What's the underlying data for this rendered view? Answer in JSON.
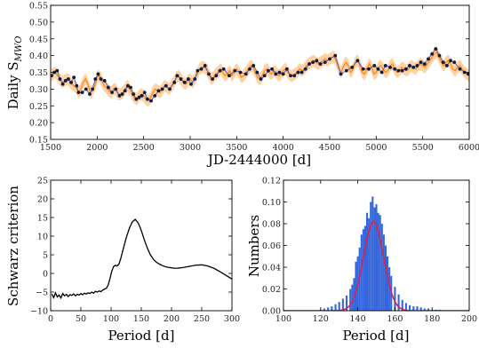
{
  "colors": {
    "obs_points": "#0d1b3d",
    "obs_line": "#3b5bd9",
    "model_line": "#ff8c1a",
    "model_band": "#ffbf80",
    "histogram": "#3366dd",
    "gauss_fit": "#dd2244",
    "schwarz_line": "#000000"
  },
  "chart_data": [
    {
      "type": "line",
      "ylabel": "Daily S",
      "ylabel_sub": "MWO",
      "xlabel": "JD-2444000 [d]",
      "xlim": [
        1500,
        6000
      ],
      "ylim": [
        0.15,
        0.55
      ],
      "xticks": [
        1500,
        2000,
        2500,
        3000,
        3500,
        4000,
        4500,
        5000,
        5500,
        6000
      ],
      "yticks": [
        0.15,
        0.2,
        0.25,
        0.3,
        0.35,
        0.4,
        0.45,
        0.5,
        0.55
      ],
      "ytick_labels": [
        "0.15",
        "0.20",
        "0.25",
        "0.30",
        "0.35",
        "0.40",
        "0.45",
        "0.50",
        "0.55"
      ],
      "series": [
        {
          "kind": "observations",
          "x": [
            1510,
            1540,
            1570,
            1600,
            1630,
            1660,
            1690,
            1720,
            1750,
            1780,
            1800,
            1840,
            1880,
            1920,
            1950,
            1980,
            2010,
            2040,
            2080,
            2120,
            2160,
            2200,
            2240,
            2270,
            2300,
            2330,
            2360,
            2390,
            2420,
            2450,
            2480,
            2510,
            2540,
            2580,
            2620,
            2660,
            2700,
            2740,
            2780,
            2830,
            2860,
            2900,
            2940,
            2980,
            3010,
            3050,
            3080,
            3120,
            3160,
            3200,
            3240,
            3280,
            3320,
            3360,
            3420,
            3480,
            3540,
            3600,
            3640,
            3680,
            3720,
            3760,
            3800,
            3840,
            3880,
            3920,
            3960,
            4000,
            4040,
            4080,
            4120,
            4160,
            4200,
            4240,
            4280,
            4320,
            4360,
            4400,
            4450,
            4500,
            4560,
            4620,
            4680,
            4740,
            4800,
            4860,
            4920,
            4980,
            5020,
            5060,
            5100,
            5150,
            5200,
            5240,
            5280,
            5320,
            5360,
            5400,
            5440,
            5480,
            5520,
            5560,
            5600,
            5640,
            5680,
            5720,
            5760,
            5800,
            5840,
            5900,
            5950,
            5990
          ],
          "y": [
            0.34,
            0.35,
            0.355,
            0.33,
            0.315,
            0.325,
            0.33,
            0.32,
            0.335,
            0.31,
            0.29,
            0.29,
            0.3,
            0.285,
            0.3,
            0.33,
            0.345,
            0.33,
            0.325,
            0.305,
            0.29,
            0.3,
            0.28,
            0.285,
            0.295,
            0.31,
            0.305,
            0.285,
            0.27,
            0.275,
            0.28,
            0.29,
            0.27,
            0.265,
            0.28,
            0.295,
            0.3,
            0.31,
            0.3,
            0.32,
            0.34,
            0.33,
            0.32,
            0.33,
            0.315,
            0.33,
            0.355,
            0.36,
            0.37,
            0.345,
            0.33,
            0.34,
            0.355,
            0.36,
            0.34,
            0.355,
            0.35,
            0.345,
            0.36,
            0.37,
            0.35,
            0.33,
            0.34,
            0.355,
            0.36,
            0.345,
            0.35,
            0.345,
            0.36,
            0.34,
            0.34,
            0.35,
            0.35,
            0.36,
            0.375,
            0.38,
            0.385,
            0.375,
            0.38,
            0.39,
            0.4,
            0.345,
            0.355,
            0.365,
            0.385,
            0.36,
            0.36,
            0.37,
            0.36,
            0.35,
            0.37,
            0.365,
            0.36,
            0.355,
            0.355,
            0.36,
            0.37,
            0.365,
            0.37,
            0.38,
            0.375,
            0.39,
            0.405,
            0.42,
            0.4,
            0.38,
            0.37,
            0.385,
            0.38,
            0.36,
            0.35,
            0.345
          ]
        },
        {
          "kind": "model",
          "x": [
            1500,
            1525,
            1550,
            1575,
            1600,
            1625,
            1650,
            1675,
            1700,
            1725,
            1750,
            1775,
            1800,
            1825,
            1850,
            1875,
            1900,
            1925,
            1950,
            1975,
            2000,
            2025,
            2050,
            2075,
            2100,
            2125,
            2150,
            2175,
            2200,
            2225,
            2250,
            2275,
            2300,
            2325,
            2350,
            2375,
            2400,
            2425,
            2450,
            2475,
            2500,
            2525,
            2550,
            2575,
            2600,
            2625,
            2650,
            2675,
            2700,
            2725,
            2750,
            2775,
            2800,
            2825,
            2850,
            2875,
            2900,
            2925,
            2950,
            2975,
            3000,
            3025,
            3050,
            3075,
            3100,
            3125,
            3150,
            3175,
            3200,
            3225,
            3250,
            3275,
            3300,
            3325,
            3350,
            3375,
            3400,
            3425,
            3450,
            3475,
            3500,
            3525,
            3550,
            3575,
            3600,
            3625,
            3650,
            3675,
            3700,
            3725,
            3750,
            3775,
            3800,
            3825,
            3850,
            3875,
            3900,
            3925,
            3950,
            3975,
            4000,
            4025,
            4050,
            4075,
            4100,
            4125,
            4150,
            4175,
            4200,
            4225,
            4250,
            4275,
            4300,
            4325,
            4350,
            4375,
            4400,
            4425,
            4450,
            4475,
            4500,
            4525,
            4550,
            4575,
            4600,
            4625,
            4650,
            4675,
            4700,
            4725,
            4750,
            4775,
            4800,
            4825,
            4850,
            4875,
            4900,
            4925,
            4950,
            4975,
            5000,
            5025,
            5050,
            5075,
            5100,
            5125,
            5150,
            5175,
            5200,
            5225,
            5250,
            5275,
            5300,
            5325,
            5350,
            5375,
            5400,
            5425,
            5450,
            5475,
            5500,
            5525,
            5550,
            5575,
            5600,
            5625,
            5650,
            5675,
            5700,
            5725,
            5750,
            5775,
            5800,
            5825,
            5850,
            5875,
            5900,
            5925,
            5950,
            5975,
            6000
          ],
          "y": [
            0.34,
            0.345,
            0.35,
            0.34,
            0.33,
            0.32,
            0.325,
            0.33,
            0.325,
            0.315,
            0.31,
            0.305,
            0.29,
            0.3,
            0.32,
            0.33,
            0.315,
            0.29,
            0.295,
            0.31,
            0.335,
            0.34,
            0.325,
            0.31,
            0.305,
            0.295,
            0.29,
            0.3,
            0.3,
            0.285,
            0.285,
            0.29,
            0.3,
            0.31,
            0.3,
            0.285,
            0.275,
            0.27,
            0.28,
            0.285,
            0.28,
            0.27,
            0.265,
            0.275,
            0.29,
            0.3,
            0.295,
            0.29,
            0.3,
            0.31,
            0.305,
            0.3,
            0.31,
            0.32,
            0.335,
            0.34,
            0.33,
            0.32,
            0.315,
            0.325,
            0.33,
            0.32,
            0.33,
            0.345,
            0.36,
            0.365,
            0.365,
            0.36,
            0.345,
            0.33,
            0.335,
            0.345,
            0.35,
            0.36,
            0.35,
            0.34,
            0.345,
            0.355,
            0.34,
            0.35,
            0.36,
            0.35,
            0.335,
            0.34,
            0.35,
            0.36,
            0.37,
            0.365,
            0.35,
            0.335,
            0.33,
            0.34,
            0.355,
            0.36,
            0.35,
            0.345,
            0.355,
            0.35,
            0.34,
            0.345,
            0.355,
            0.36,
            0.35,
            0.34,
            0.34,
            0.345,
            0.35,
            0.36,
            0.355,
            0.36,
            0.37,
            0.375,
            0.38,
            0.385,
            0.38,
            0.375,
            0.38,
            0.385,
            0.39,
            0.385,
            0.39,
            0.395,
            0.395,
            0.38,
            0.36,
            0.35,
            0.37,
            0.38,
            0.37,
            0.35,
            0.36,
            0.38,
            0.385,
            0.37,
            0.35,
            0.345,
            0.36,
            0.375,
            0.365,
            0.345,
            0.35,
            0.365,
            0.37,
            0.36,
            0.35,
            0.355,
            0.37,
            0.375,
            0.36,
            0.35,
            0.355,
            0.365,
            0.36,
            0.355,
            0.36,
            0.37,
            0.365,
            0.36,
            0.37,
            0.375,
            0.37,
            0.365,
            0.375,
            0.385,
            0.395,
            0.405,
            0.41,
            0.395,
            0.38,
            0.37,
            0.38,
            0.385,
            0.375,
            0.36,
            0.355,
            0.365,
            0.37,
            0.36,
            0.35,
            0.345,
            0.34
          ]
        }
      ]
    },
    {
      "type": "line",
      "xlabel": "Period [d]",
      "ylabel": "Schwarz criterion",
      "xlim": [
        0,
        300
      ],
      "ylim": [
        -10,
        25
      ],
      "xticks": [
        0,
        50,
        100,
        150,
        200,
        250,
        300
      ],
      "yticks": [
        -10,
        -5,
        0,
        5,
        10,
        15,
        20,
        25
      ],
      "ytick_labels": [
        "−10",
        "−5",
        "0",
        "5",
        "10",
        "15",
        "20",
        "25"
      ],
      "series": [
        {
          "x": [
            2,
            5,
            8,
            11,
            14,
            17,
            20,
            23,
            26,
            29,
            32,
            35,
            38,
            41,
            44,
            47,
            50,
            53,
            56,
            59,
            62,
            65,
            68,
            71,
            74,
            77,
            80,
            83,
            86,
            89,
            92,
            95,
            98,
            101,
            104,
            107,
            110,
            113,
            116,
            120,
            125,
            130,
            135,
            140,
            145,
            150,
            155,
            160,
            165,
            170,
            175,
            180,
            185,
            190,
            195,
            200,
            205,
            210,
            215,
            220,
            230,
            240,
            250,
            260,
            270,
            280,
            290,
            300
          ],
          "y": [
            -5.5,
            -6.5,
            -5.2,
            -6.3,
            -5.8,
            -6.6,
            -5.4,
            -6.0,
            -5.6,
            -6.2,
            -5.7,
            -5.9,
            -5.5,
            -6.0,
            -5.6,
            -5.8,
            -5.4,
            -5.7,
            -5.3,
            -5.5,
            -5.2,
            -5.4,
            -5.0,
            -5.3,
            -4.8,
            -5.0,
            -4.7,
            -4.9,
            -4.5,
            -4.2,
            -4.0,
            -3.2,
            -1.5,
            0.5,
            1.8,
            2.2,
            2.0,
            2.5,
            4.0,
            6.5,
            9.5,
            12.0,
            13.8,
            14.5,
            13.5,
            11.5,
            9.0,
            6.8,
            5.0,
            3.8,
            3.0,
            2.5,
            2.1,
            1.8,
            1.6,
            1.5,
            1.4,
            1.4,
            1.5,
            1.6,
            1.9,
            2.2,
            2.3,
            2.0,
            1.4,
            0.5,
            -0.5,
            -1.5
          ]
        }
      ]
    },
    {
      "type": "bar",
      "xlabel": "Period [d]",
      "ylabel": "Numbers",
      "xlim": [
        100,
        200
      ],
      "ylim": [
        0,
        0.12
      ],
      "xticks": [
        100,
        120,
        140,
        160,
        180,
        200
      ],
      "yticks": [
        0.0,
        0.02,
        0.04,
        0.06,
        0.08,
        0.1,
        0.12
      ],
      "ytick_labels": [
        "0.00",
        "0.02",
        "0.04",
        "0.06",
        "0.08",
        "0.10",
        "0.12"
      ],
      "histogram": {
        "x": [
          120,
          122,
          124,
          126,
          128,
          130,
          132,
          134,
          136,
          137,
          138,
          139,
          140,
          141,
          142,
          143,
          144,
          145,
          146,
          147,
          148,
          149,
          150,
          151,
          152,
          153,
          154,
          155,
          156,
          157,
          158,
          160,
          162,
          164,
          166,
          168,
          170,
          172,
          174,
          176,
          178,
          180,
          182,
          184
        ],
        "y": [
          0.001,
          0.002,
          0.003,
          0.004,
          0.006,
          0.008,
          0.011,
          0.014,
          0.02,
          0.024,
          0.03,
          0.045,
          0.05,
          0.058,
          0.07,
          0.075,
          0.078,
          0.09,
          0.085,
          0.1,
          0.105,
          0.095,
          0.098,
          0.09,
          0.088,
          0.08,
          0.07,
          0.06,
          0.05,
          0.04,
          0.032,
          0.022,
          0.015,
          0.01,
          0.007,
          0.005,
          0.004,
          0.004,
          0.003,
          0.002,
          0.002,
          0.001,
          0.001,
          0.001
        ]
      },
      "fit": {
        "kind": "gaussian",
        "mean": 148.5,
        "sigma": 5.4,
        "peak": 0.082
      }
    }
  ]
}
